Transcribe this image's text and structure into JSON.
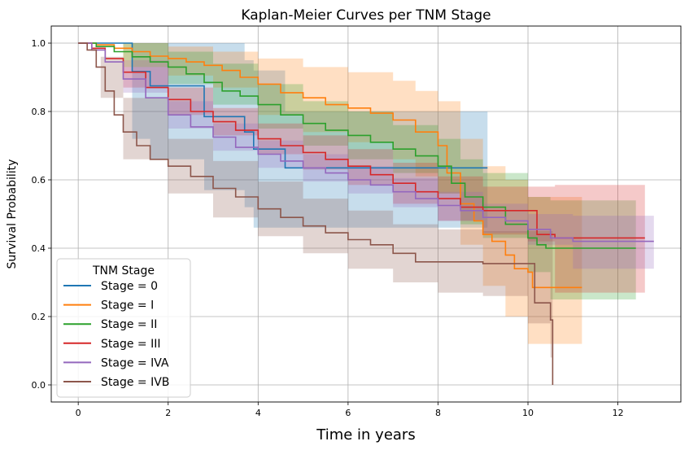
{
  "chart_data": {
    "type": "line",
    "title": "Kaplan-Meier Curves per TNM Stage",
    "xlabel": "Time in years",
    "ylabel": "Survival Probability",
    "xlim": [
      -0.6,
      13.4
    ],
    "ylim": [
      -0.05,
      1.05
    ],
    "xticks": [
      0,
      2,
      4,
      6,
      8,
      10,
      12
    ],
    "yticks": [
      0.0,
      0.2,
      0.4,
      0.6,
      0.8,
      1.0
    ],
    "xtick_labels": [
      "0",
      "2",
      "4",
      "6",
      "8",
      "10",
      "12"
    ],
    "ytick_labels": [
      "0.0",
      "0.2",
      "0.4",
      "0.6",
      "0.8",
      "1.0"
    ],
    "grid": true,
    "legend": {
      "title": "TNM Stage",
      "placement": "lower-left"
    },
    "series": [
      {
        "name": "Stage = 0",
        "color": "#1f77b4",
        "points": [
          [
            0,
            1.0
          ],
          [
            1.2,
            1.0
          ],
          [
            1.2,
            0.917
          ],
          [
            1.6,
            0.917
          ],
          [
            1.6,
            0.875
          ],
          [
            2.8,
            0.875
          ],
          [
            2.8,
            0.785
          ],
          [
            3.7,
            0.785
          ],
          [
            3.7,
            0.74
          ],
          [
            3.9,
            0.74
          ],
          [
            3.9,
            0.69
          ],
          [
            4.6,
            0.69
          ],
          [
            4.6,
            0.635
          ],
          [
            9.1,
            0.635
          ]
        ],
        "ci_upper": [
          [
            0,
            1.0
          ],
          [
            1.2,
            1.0
          ],
          [
            1.6,
            1.0
          ],
          [
            2.8,
            1.0
          ],
          [
            3.7,
            0.95
          ],
          [
            3.9,
            0.92
          ],
          [
            4.6,
            0.8
          ],
          [
            9.1,
            0.8
          ]
        ],
        "ci_lower": [
          [
            0,
            1.0
          ],
          [
            1.2,
            0.72
          ],
          [
            1.6,
            0.66
          ],
          [
            2.8,
            0.57
          ],
          [
            3.7,
            0.52
          ],
          [
            3.9,
            0.46
          ],
          [
            4.6,
            0.46
          ],
          [
            9.1,
            0.46
          ]
        ]
      },
      {
        "name": "Stage = I",
        "color": "#ff7f0e",
        "points": [
          [
            0,
            1.0
          ],
          [
            0.4,
            0.995
          ],
          [
            0.8,
            0.985
          ],
          [
            1.2,
            0.975
          ],
          [
            1.6,
            0.962
          ],
          [
            2.0,
            0.955
          ],
          [
            2.4,
            0.945
          ],
          [
            2.8,
            0.935
          ],
          [
            3.2,
            0.92
          ],
          [
            3.6,
            0.9
          ],
          [
            4.0,
            0.88
          ],
          [
            4.5,
            0.855
          ],
          [
            5.0,
            0.84
          ],
          [
            5.5,
            0.82
          ],
          [
            6.0,
            0.81
          ],
          [
            6.5,
            0.795
          ],
          [
            7.0,
            0.775
          ],
          [
            7.5,
            0.74
          ],
          [
            8.0,
            0.7
          ],
          [
            8.2,
            0.62
          ],
          [
            8.5,
            0.53
          ],
          [
            8.8,
            0.48
          ],
          [
            9.0,
            0.44
          ],
          [
            9.2,
            0.42
          ],
          [
            9.5,
            0.38
          ],
          [
            9.7,
            0.34
          ],
          [
            10.0,
            0.33
          ],
          [
            10.1,
            0.285
          ],
          [
            11.2,
            0.285
          ]
        ],
        "ci_upper": [
          [
            0,
            1.0
          ],
          [
            1.0,
            1.0
          ],
          [
            2.0,
            0.99
          ],
          [
            3.0,
            0.975
          ],
          [
            4.0,
            0.955
          ],
          [
            5.0,
            0.93
          ],
          [
            6.0,
            0.915
          ],
          [
            7.0,
            0.89
          ],
          [
            7.5,
            0.86
          ],
          [
            8.0,
            0.83
          ],
          [
            8.5,
            0.72
          ],
          [
            9.0,
            0.64
          ],
          [
            9.5,
            0.6
          ],
          [
            10.0,
            0.55
          ],
          [
            11.2,
            0.55
          ]
        ],
        "ci_lower": [
          [
            0,
            1.0
          ],
          [
            1.0,
            0.95
          ],
          [
            2.0,
            0.905
          ],
          [
            3.0,
            0.87
          ],
          [
            4.0,
            0.79
          ],
          [
            5.0,
            0.74
          ],
          [
            6.0,
            0.71
          ],
          [
            7.0,
            0.66
          ],
          [
            7.5,
            0.61
          ],
          [
            8.0,
            0.56
          ],
          [
            8.5,
            0.41
          ],
          [
            9.0,
            0.29
          ],
          [
            9.5,
            0.2
          ],
          [
            10.0,
            0.12
          ],
          [
            11.2,
            0.12
          ]
        ]
      },
      {
        "name": "Stage = II",
        "color": "#2ca02c",
        "points": [
          [
            0,
            1.0
          ],
          [
            0.4,
            0.99
          ],
          [
            0.8,
            0.975
          ],
          [
            1.2,
            0.96
          ],
          [
            1.6,
            0.945
          ],
          [
            2.0,
            0.93
          ],
          [
            2.4,
            0.91
          ],
          [
            2.8,
            0.885
          ],
          [
            3.2,
            0.86
          ],
          [
            3.6,
            0.845
          ],
          [
            4.0,
            0.82
          ],
          [
            4.5,
            0.79
          ],
          [
            5.0,
            0.765
          ],
          [
            5.5,
            0.745
          ],
          [
            6.0,
            0.73
          ],
          [
            6.5,
            0.71
          ],
          [
            7.0,
            0.69
          ],
          [
            7.5,
            0.67
          ],
          [
            8.0,
            0.64
          ],
          [
            8.3,
            0.59
          ],
          [
            8.6,
            0.55
          ],
          [
            9.0,
            0.52
          ],
          [
            9.5,
            0.47
          ],
          [
            10.0,
            0.43
          ],
          [
            10.2,
            0.41
          ],
          [
            10.4,
            0.4
          ],
          [
            12.4,
            0.4
          ]
        ],
        "ci_upper": [
          [
            0,
            1.0
          ],
          [
            1.0,
            1.0
          ],
          [
            2.0,
            0.975
          ],
          [
            3.0,
            0.94
          ],
          [
            4.0,
            0.88
          ],
          [
            5.0,
            0.83
          ],
          [
            6.0,
            0.8
          ],
          [
            7.0,
            0.76
          ],
          [
            8.0,
            0.72
          ],
          [
            8.5,
            0.66
          ],
          [
            9.0,
            0.62
          ],
          [
            10.0,
            0.55
          ],
          [
            10.5,
            0.54
          ],
          [
            12.4,
            0.54
          ]
        ],
        "ci_lower": [
          [
            0,
            1.0
          ],
          [
            1.0,
            0.93
          ],
          [
            2.0,
            0.88
          ],
          [
            3.0,
            0.82
          ],
          [
            4.0,
            0.75
          ],
          [
            5.0,
            0.7
          ],
          [
            6.0,
            0.66
          ],
          [
            7.0,
            0.62
          ],
          [
            8.0,
            0.56
          ],
          [
            8.5,
            0.47
          ],
          [
            9.0,
            0.43
          ],
          [
            10.0,
            0.33
          ],
          [
            10.5,
            0.25
          ],
          [
            12.4,
            0.25
          ]
        ]
      },
      {
        "name": "Stage = III",
        "color": "#d62728",
        "points": [
          [
            0,
            1.0
          ],
          [
            0.3,
            0.985
          ],
          [
            0.6,
            0.955
          ],
          [
            1.0,
            0.915
          ],
          [
            1.5,
            0.87
          ],
          [
            2.0,
            0.835
          ],
          [
            2.5,
            0.8
          ],
          [
            3.0,
            0.77
          ],
          [
            3.5,
            0.745
          ],
          [
            4.0,
            0.72
          ],
          [
            4.5,
            0.7
          ],
          [
            5.0,
            0.68
          ],
          [
            5.5,
            0.66
          ],
          [
            6.0,
            0.64
          ],
          [
            6.5,
            0.615
          ],
          [
            7.0,
            0.59
          ],
          [
            7.5,
            0.565
          ],
          [
            8.0,
            0.545
          ],
          [
            8.5,
            0.52
          ],
          [
            9.0,
            0.51
          ],
          [
            9.5,
            0.51
          ],
          [
            10.0,
            0.51
          ],
          [
            10.2,
            0.44
          ],
          [
            10.6,
            0.43
          ],
          [
            12.6,
            0.43
          ]
        ],
        "ci_upper": [
          [
            0,
            1.0
          ],
          [
            1.0,
            0.95
          ],
          [
            2.0,
            0.87
          ],
          [
            3.0,
            0.81
          ],
          [
            4.0,
            0.765
          ],
          [
            5.0,
            0.73
          ],
          [
            6.0,
            0.69
          ],
          [
            7.0,
            0.65
          ],
          [
            8.0,
            0.61
          ],
          [
            9.0,
            0.58
          ],
          [
            10.0,
            0.58
          ],
          [
            10.6,
            0.585
          ],
          [
            12.6,
            0.585
          ]
        ],
        "ci_lower": [
          [
            0,
            1.0
          ],
          [
            1.0,
            0.87
          ],
          [
            2.0,
            0.79
          ],
          [
            3.0,
            0.73
          ],
          [
            4.0,
            0.675
          ],
          [
            5.0,
            0.63
          ],
          [
            6.0,
            0.585
          ],
          [
            7.0,
            0.53
          ],
          [
            8.0,
            0.48
          ],
          [
            9.0,
            0.44
          ],
          [
            10.0,
            0.42
          ],
          [
            10.6,
            0.27
          ],
          [
            12.6,
            0.27
          ]
        ]
      },
      {
        "name": "Stage = IVA",
        "color": "#9467bd",
        "points": [
          [
            0,
            1.0
          ],
          [
            0.3,
            0.98
          ],
          [
            0.6,
            0.945
          ],
          [
            1.0,
            0.895
          ],
          [
            1.5,
            0.84
          ],
          [
            2.0,
            0.79
          ],
          [
            2.5,
            0.755
          ],
          [
            3.0,
            0.725
          ],
          [
            3.5,
            0.695
          ],
          [
            4.0,
            0.675
          ],
          [
            4.5,
            0.655
          ],
          [
            5.0,
            0.635
          ],
          [
            5.5,
            0.62
          ],
          [
            6.0,
            0.6
          ],
          [
            6.5,
            0.585
          ],
          [
            7.0,
            0.565
          ],
          [
            7.5,
            0.545
          ],
          [
            8.0,
            0.525
          ],
          [
            8.5,
            0.51
          ],
          [
            9.0,
            0.49
          ],
          [
            9.5,
            0.48
          ],
          [
            10.0,
            0.455
          ],
          [
            10.5,
            0.43
          ],
          [
            11.0,
            0.42
          ],
          [
            12.8,
            0.42
          ]
        ],
        "ci_upper": [
          [
            0,
            1.0
          ],
          [
            1.0,
            0.93
          ],
          [
            2.0,
            0.83
          ],
          [
            3.0,
            0.765
          ],
          [
            4.0,
            0.715
          ],
          [
            5.0,
            0.675
          ],
          [
            6.0,
            0.64
          ],
          [
            7.0,
            0.605
          ],
          [
            8.0,
            0.565
          ],
          [
            9.0,
            0.53
          ],
          [
            10.0,
            0.5
          ],
          [
            11.0,
            0.495
          ],
          [
            12.8,
            0.495
          ]
        ],
        "ci_lower": [
          [
            0,
            1.0
          ],
          [
            1.0,
            0.855
          ],
          [
            2.0,
            0.75
          ],
          [
            3.0,
            0.685
          ],
          [
            4.0,
            0.635
          ],
          [
            5.0,
            0.595
          ],
          [
            6.0,
            0.56
          ],
          [
            7.0,
            0.52
          ],
          [
            8.0,
            0.48
          ],
          [
            9.0,
            0.445
          ],
          [
            10.0,
            0.41
          ],
          [
            11.0,
            0.34
          ],
          [
            12.8,
            0.34
          ]
        ]
      },
      {
        "name": "Stage = IVB",
        "color": "#8c564b",
        "points": [
          [
            0,
            1.0
          ],
          [
            0.2,
            0.98
          ],
          [
            0.4,
            0.93
          ],
          [
            0.6,
            0.86
          ],
          [
            0.8,
            0.79
          ],
          [
            1.0,
            0.74
          ],
          [
            1.3,
            0.7
          ],
          [
            1.6,
            0.66
          ],
          [
            2.0,
            0.64
          ],
          [
            2.5,
            0.61
          ],
          [
            3.0,
            0.575
          ],
          [
            3.5,
            0.55
          ],
          [
            4.0,
            0.515
          ],
          [
            4.5,
            0.49
          ],
          [
            5.0,
            0.465
          ],
          [
            5.5,
            0.445
          ],
          [
            6.0,
            0.425
          ],
          [
            6.5,
            0.41
          ],
          [
            7.0,
            0.385
          ],
          [
            7.5,
            0.36
          ],
          [
            8.0,
            0.36
          ],
          [
            9.0,
            0.355
          ],
          [
            10.0,
            0.355
          ],
          [
            10.15,
            0.24
          ],
          [
            10.5,
            0.24
          ],
          [
            10.5,
            0.19
          ],
          [
            10.55,
            0.19
          ],
          [
            10.55,
            0.0
          ]
        ],
        "ci_upper": [
          [
            0,
            1.0
          ],
          [
            0.5,
            0.96
          ],
          [
            1.0,
            0.84
          ],
          [
            2.0,
            0.72
          ],
          [
            3.0,
            0.655
          ],
          [
            4.0,
            0.595
          ],
          [
            5.0,
            0.545
          ],
          [
            6.0,
            0.51
          ],
          [
            7.0,
            0.47
          ],
          [
            8.0,
            0.455
          ],
          [
            9.0,
            0.45
          ],
          [
            10.0,
            0.45
          ],
          [
            10.5,
            0.45
          ],
          [
            10.55,
            0.45
          ]
        ],
        "ci_lower": [
          [
            0,
            1.0
          ],
          [
            0.5,
            0.84
          ],
          [
            1.0,
            0.66
          ],
          [
            2.0,
            0.56
          ],
          [
            3.0,
            0.49
          ],
          [
            4.0,
            0.435
          ],
          [
            5.0,
            0.385
          ],
          [
            6.0,
            0.34
          ],
          [
            7.0,
            0.3
          ],
          [
            8.0,
            0.27
          ],
          [
            9.0,
            0.26
          ],
          [
            10.0,
            0.18
          ],
          [
            10.5,
            0.08
          ],
          [
            10.55,
            0.08
          ]
        ]
      }
    ]
  }
}
